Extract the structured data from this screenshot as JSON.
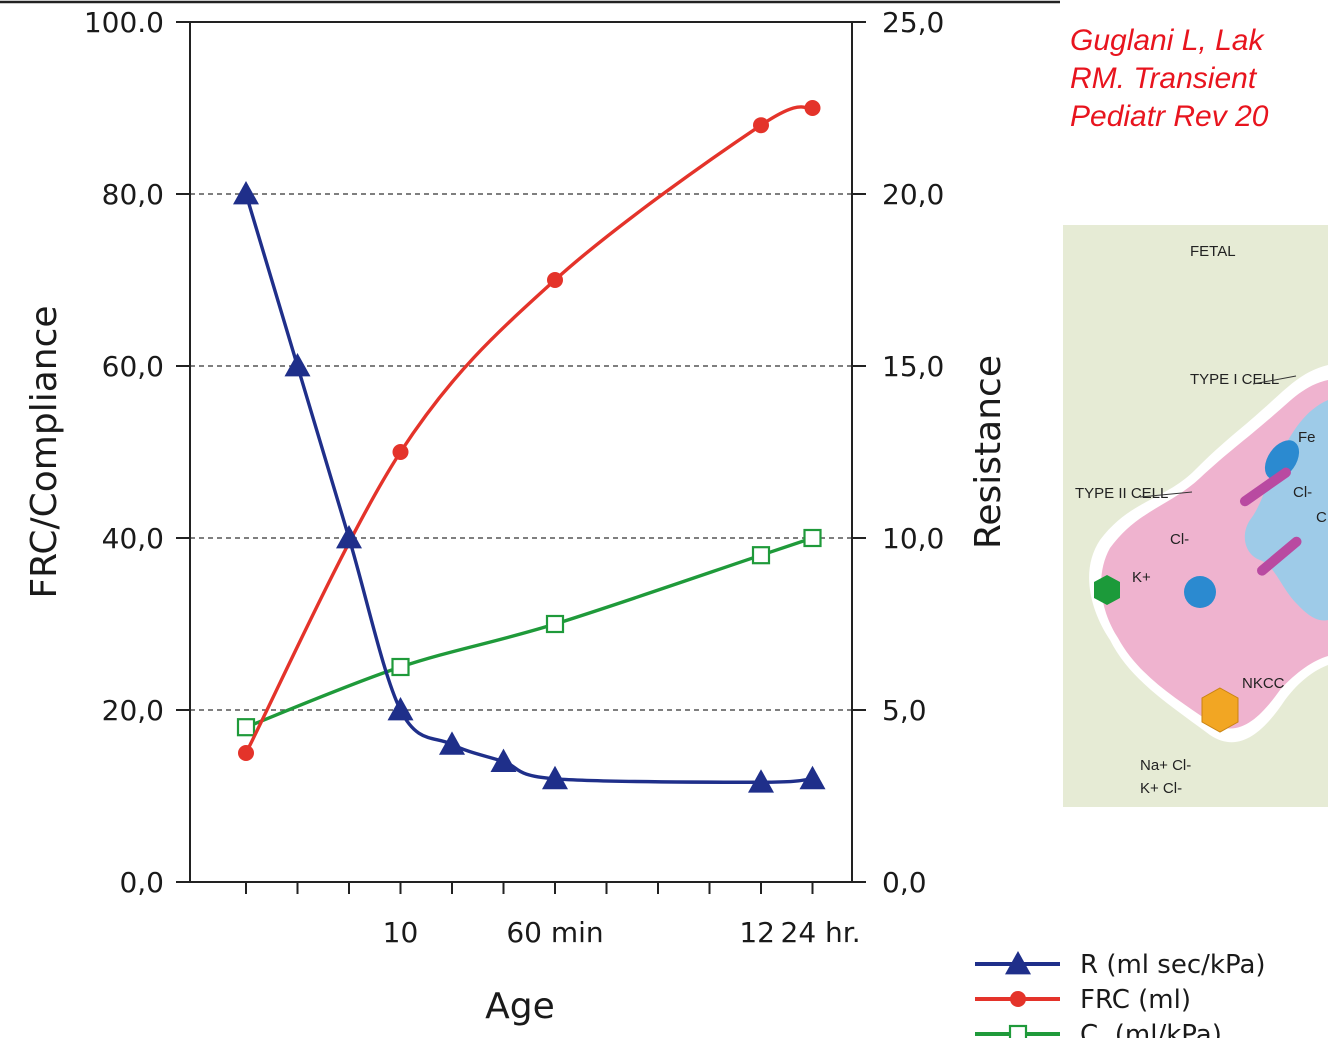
{
  "colors": {
    "resistance": "#1f2f8a",
    "frc": "#e4332a",
    "compliance": "#1f9a3a",
    "citation": "#e8141e",
    "diagram_bg": "#e6ebd5",
    "diagram_cell": "#efb3cf",
    "diagram_fluid": "#9ecbe8"
  },
  "citation": {
    "lines": [
      "Guglani L, Lak",
      "RM. Transient",
      "Pediatr Rev 20"
    ]
  },
  "chart_data": {
    "type": "line",
    "x_ticks": [
      "",
      "",
      "",
      "10",
      "",
      "",
      "60 min",
      "",
      "",
      "",
      "12",
      "24 hr."
    ],
    "xlabel": "Age",
    "ylabel_left": "FRC/Compliance",
    "ylabel_right": "Resistance",
    "ylim_left": [
      0,
      100
    ],
    "ylim_right": [
      0,
      25
    ],
    "left_tick_labels": [
      "0,0",
      "20,0",
      "40,0",
      "60,0",
      "80,0",
      "100.0"
    ],
    "right_tick_labels": [
      "0,0",
      "5,0",
      "10,0",
      "15,0",
      "20,0",
      "25,0"
    ],
    "grid": "horizontal dashed at 20, 40, 60, 80",
    "series": [
      {
        "name": "R (ml sec/kPa)",
        "axis": "right",
        "marker": "filled-triangle",
        "color_key": "resistance",
        "points": [
          [
            1,
            20.0
          ],
          [
            2,
            15.0
          ],
          [
            3,
            10.0
          ],
          [
            4,
            5.0
          ],
          [
            5,
            4.0
          ],
          [
            6,
            3.5
          ],
          [
            7,
            3.0
          ],
          [
            11,
            2.9
          ],
          [
            12,
            3.0
          ]
        ]
      },
      {
        "name": "FRC (ml)",
        "axis": "left",
        "marker": "filled-circle",
        "color_key": "frc",
        "points": [
          [
            1,
            15
          ],
          [
            4,
            50
          ],
          [
            7,
            70
          ],
          [
            11,
            88
          ],
          [
            12,
            90
          ]
        ]
      },
      {
        "name": "C_L (ml/kPa)",
        "axis": "left",
        "marker": "open-square",
        "color_key": "compliance",
        "points": [
          [
            1,
            18
          ],
          [
            4,
            25
          ],
          [
            7,
            30
          ],
          [
            11,
            38
          ],
          [
            12,
            40
          ]
        ]
      }
    ],
    "legend": [
      {
        "label": "R (ml sec/kPa)",
        "color_key": "resistance",
        "marker": "filled-triangle"
      },
      {
        "label": "FRC (ml)",
        "color_key": "frc",
        "marker": "filled-circle"
      },
      {
        "label": "C (ml/kPa)",
        "subscript": "L",
        "color_key": "compliance",
        "marker": "open-square"
      }
    ],
    "legend_position": "bottom-right"
  },
  "diagram": {
    "labels": {
      "fetal": "FETAL",
      "type1": "TYPE I CELL",
      "type2": "TYPE II CELL",
      "fe": "Fe",
      "cl_a": "Cl-",
      "cl_b": "Cl-",
      "cl_c": "C",
      "kplus": "K+",
      "nkcc": "NKCC",
      "na_cl": "Na+ Cl-",
      "k_cl": "K+ Cl-"
    }
  }
}
